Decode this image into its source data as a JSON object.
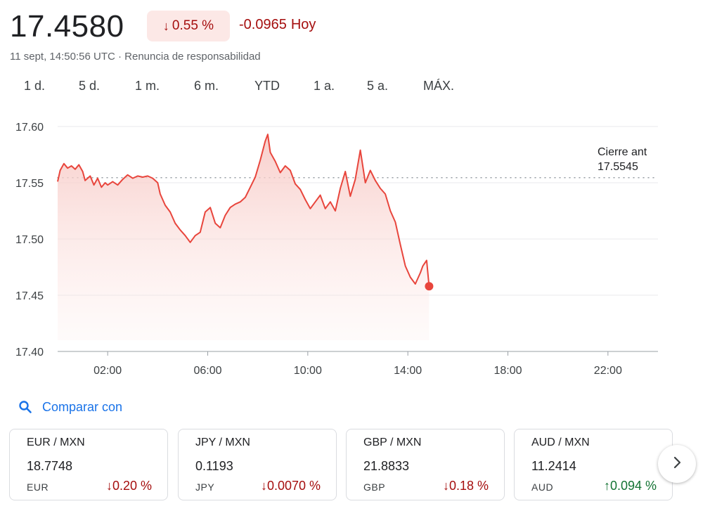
{
  "quote": {
    "price": "17.4580",
    "pct_change_arrow": "↓",
    "pct_change": "0.55 %",
    "abs_change": "-0.0965",
    "period": "Hoy",
    "timestamp": "11 sept, 14:50:56 UTC",
    "separator": "·",
    "disclaimer": "Renuncia de responsabilidad"
  },
  "tabs": [
    "1 d.",
    "5 d.",
    "1 m.",
    "6 m.",
    "YTD",
    "1 a.",
    "5 a.",
    "MÁX."
  ],
  "active_tab": "1 d.",
  "previous_close": {
    "label": "Cierre ant",
    "value": "17.5545"
  },
  "colors": {
    "line": "#e8453c",
    "fill": "#fce8e6",
    "down": "#a50e0e",
    "up": "#137333",
    "accent": "#1a73e8"
  },
  "chart_data": {
    "type": "area",
    "title": "",
    "xlabel": "",
    "ylabel": "",
    "ylim": [
      17.4,
      17.6
    ],
    "xlim_hours": [
      0,
      24
    ],
    "y_ticks": [
      "17.60",
      "17.55",
      "17.50",
      "17.45",
      "17.40"
    ],
    "x_ticks": [
      "02:00",
      "06:00",
      "10:00",
      "14:00",
      "18:00",
      "22:00"
    ],
    "reference_line": 17.5545,
    "grid": true,
    "series": [
      {
        "x": [
          0,
          0.1,
          0.25,
          0.4,
          0.55,
          0.7,
          0.85,
          1.0,
          1.1,
          1.3,
          1.45,
          1.6,
          1.75,
          1.9,
          2.0,
          2.2,
          2.4,
          2.6,
          2.8,
          3.0,
          3.2,
          3.4,
          3.6,
          3.8,
          4.0,
          4.1,
          4.3,
          4.5,
          4.7,
          4.9,
          5.1,
          5.3,
          5.5,
          5.7,
          5.9,
          6.1,
          6.3,
          6.5,
          6.7,
          6.9,
          7.1,
          7.3,
          7.5,
          7.7,
          7.9,
          8.1,
          8.3,
          8.4,
          8.5,
          8.7,
          8.9,
          9.1,
          9.3,
          9.5,
          9.7,
          9.9,
          10.1,
          10.3,
          10.5,
          10.7,
          10.9,
          11.1,
          11.3,
          11.5,
          11.7,
          11.9,
          12.1,
          12.3,
          12.5,
          12.7,
          12.9,
          13.1,
          13.3,
          13.5,
          13.7,
          13.9,
          14.1,
          14.3,
          14.5,
          14.6,
          14.75,
          14.85
        ],
        "y": [
          17.551,
          17.561,
          17.567,
          17.563,
          17.565,
          17.562,
          17.566,
          17.56,
          17.552,
          17.556,
          17.548,
          17.554,
          17.546,
          17.55,
          17.548,
          17.551,
          17.548,
          17.553,
          17.557,
          17.554,
          17.556,
          17.555,
          17.556,
          17.554,
          17.55,
          17.54,
          17.53,
          17.524,
          17.514,
          17.508,
          17.503,
          17.497,
          17.503,
          17.506,
          17.524,
          17.528,
          17.514,
          17.51,
          17.521,
          17.528,
          17.531,
          17.533,
          17.537,
          17.546,
          17.555,
          17.57,
          17.587,
          17.593,
          17.577,
          17.569,
          17.559,
          17.565,
          17.561,
          17.549,
          17.544,
          17.535,
          17.527,
          17.533,
          17.539,
          17.527,
          17.533,
          17.525,
          17.545,
          17.56,
          17.538,
          17.553,
          17.579,
          17.55,
          17.561,
          17.552,
          17.545,
          17.54,
          17.525,
          17.515,
          17.495,
          17.476,
          17.466,
          17.46,
          17.47,
          17.476,
          17.481,
          17.458
        ]
      }
    ]
  },
  "compare": {
    "label": "Comparar con"
  },
  "cards": [
    {
      "pair": "EUR / MXN",
      "rate": "18.7748",
      "currency": "EUR",
      "arrow": "↓",
      "change": "0.20 %",
      "direction": "down"
    },
    {
      "pair": "JPY / MXN",
      "rate": "0.1193",
      "currency": "JPY",
      "arrow": "↓",
      "change": "0.0070 %",
      "direction": "down"
    },
    {
      "pair": "GBP / MXN",
      "rate": "21.8833",
      "currency": "GBP",
      "arrow": "↓",
      "change": "0.18 %",
      "direction": "down"
    },
    {
      "pair": "AUD / MXN",
      "rate": "11.2414",
      "currency": "AUD",
      "arrow": "↑",
      "change": "0.094 %",
      "direction": "up"
    }
  ]
}
